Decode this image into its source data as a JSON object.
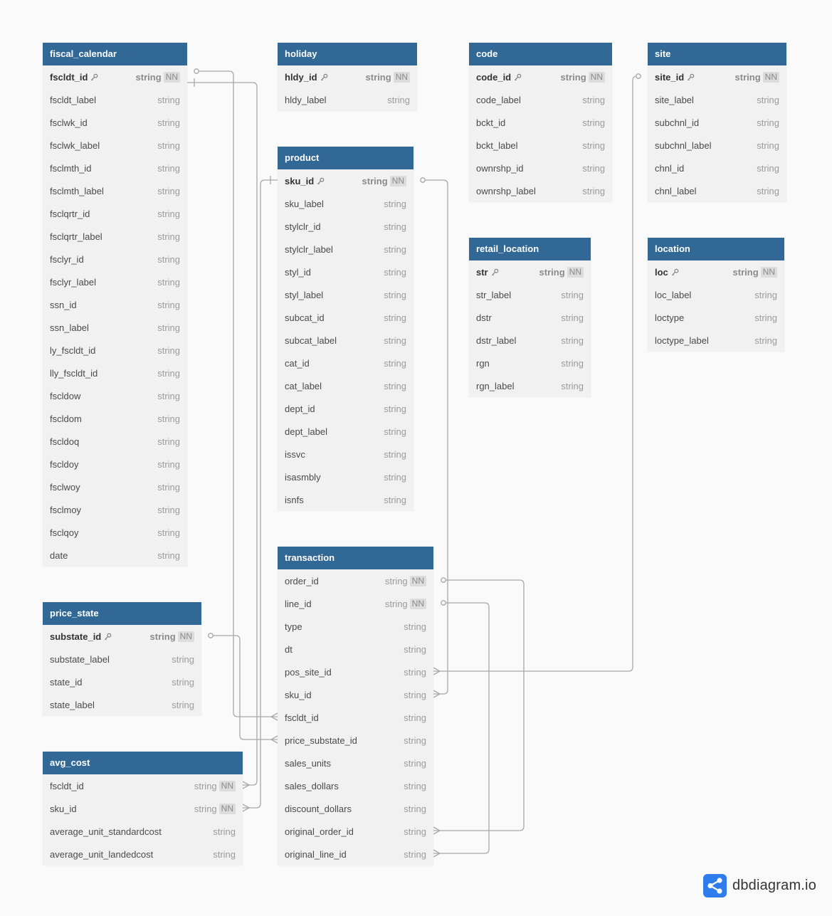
{
  "tables": [
    {
      "name": "fiscal_calendar",
      "columns": [
        {
          "name": "fscldt_id",
          "type": "string",
          "pk": true,
          "nn": "NN"
        },
        {
          "name": "fscldt_label",
          "type": "string"
        },
        {
          "name": "fsclwk_id",
          "type": "string"
        },
        {
          "name": "fsclwk_label",
          "type": "string"
        },
        {
          "name": "fsclmth_id",
          "type": "string"
        },
        {
          "name": "fsclmth_label",
          "type": "string"
        },
        {
          "name": "fsclqrtr_id",
          "type": "string"
        },
        {
          "name": "fsclqrtr_label",
          "type": "string"
        },
        {
          "name": "fsclyr_id",
          "type": "string"
        },
        {
          "name": "fsclyr_label",
          "type": "string"
        },
        {
          "name": "ssn_id",
          "type": "string"
        },
        {
          "name": "ssn_label",
          "type": "string"
        },
        {
          "name": "ly_fscldt_id",
          "type": "string"
        },
        {
          "name": "lly_fscldt_id",
          "type": "string"
        },
        {
          "name": "fscldow",
          "type": "string"
        },
        {
          "name": "fscldom",
          "type": "string"
        },
        {
          "name": "fscldoq",
          "type": "string"
        },
        {
          "name": "fscldoy",
          "type": "string"
        },
        {
          "name": "fsclwoy",
          "type": "string"
        },
        {
          "name": "fsclmoy",
          "type": "string"
        },
        {
          "name": "fsclqoy",
          "type": "string"
        },
        {
          "name": "date",
          "type": "string"
        }
      ]
    },
    {
      "name": "holiday",
      "columns": [
        {
          "name": "hldy_id",
          "type": "string",
          "pk": true,
          "nn": "NN"
        },
        {
          "name": "hldy_label",
          "type": "string"
        }
      ]
    },
    {
      "name": "product",
      "columns": [
        {
          "name": "sku_id",
          "type": "string",
          "pk": true,
          "nn": "NN"
        },
        {
          "name": "sku_label",
          "type": "string"
        },
        {
          "name": "stylclr_id",
          "type": "string"
        },
        {
          "name": "stylclr_label",
          "type": "string"
        },
        {
          "name": "styl_id",
          "type": "string"
        },
        {
          "name": "styl_label",
          "type": "string"
        },
        {
          "name": "subcat_id",
          "type": "string"
        },
        {
          "name": "subcat_label",
          "type": "string"
        },
        {
          "name": "cat_id",
          "type": "string"
        },
        {
          "name": "cat_label",
          "type": "string"
        },
        {
          "name": "dept_id",
          "type": "string"
        },
        {
          "name": "dept_label",
          "type": "string"
        },
        {
          "name": "issvc",
          "type": "string"
        },
        {
          "name": "isasmbly",
          "type": "string"
        },
        {
          "name": "isnfs",
          "type": "string"
        }
      ]
    },
    {
      "name": "code",
      "columns": [
        {
          "name": "code_id",
          "type": "string",
          "pk": true,
          "nn": "NN"
        },
        {
          "name": "code_label",
          "type": "string"
        },
        {
          "name": "bckt_id",
          "type": "string"
        },
        {
          "name": "bckt_label",
          "type": "string"
        },
        {
          "name": "ownrshp_id",
          "type": "string"
        },
        {
          "name": "ownrshp_label",
          "type": "string"
        }
      ]
    },
    {
      "name": "site",
      "columns": [
        {
          "name": "site_id",
          "type": "string",
          "pk": true,
          "nn": "NN"
        },
        {
          "name": "site_label",
          "type": "string"
        },
        {
          "name": "subchnl_id",
          "type": "string"
        },
        {
          "name": "subchnl_label",
          "type": "string"
        },
        {
          "name": "chnl_id",
          "type": "string"
        },
        {
          "name": "chnl_label",
          "type": "string"
        }
      ]
    },
    {
      "name": "retail_location",
      "columns": [
        {
          "name": "str",
          "type": "string",
          "pk": true,
          "nn": "NN"
        },
        {
          "name": "str_label",
          "type": "string"
        },
        {
          "name": "dstr",
          "type": "string"
        },
        {
          "name": "dstr_label",
          "type": "string"
        },
        {
          "name": "rgn",
          "type": "string"
        },
        {
          "name": "rgn_label",
          "type": "string"
        }
      ]
    },
    {
      "name": "location",
      "columns": [
        {
          "name": "loc",
          "type": "string",
          "pk": true,
          "nn": "NN"
        },
        {
          "name": "loc_label",
          "type": "string"
        },
        {
          "name": "loctype",
          "type": "string"
        },
        {
          "name": "loctype_label",
          "type": "string"
        }
      ]
    },
    {
      "name": "price_state",
      "columns": [
        {
          "name": "substate_id",
          "type": "string",
          "pk": true,
          "nn": "NN"
        },
        {
          "name": "substate_label",
          "type": "string"
        },
        {
          "name": "state_id",
          "type": "string"
        },
        {
          "name": "state_label",
          "type": "string"
        }
      ]
    },
    {
      "name": "avg_cost",
      "columns": [
        {
          "name": "fscldt_id",
          "type": "string",
          "nn": "NN"
        },
        {
          "name": "sku_id",
          "type": "string",
          "nn": "NN"
        },
        {
          "name": "average_unit_standardcost",
          "type": "string"
        },
        {
          "name": "average_unit_landedcost",
          "type": "string"
        }
      ]
    },
    {
      "name": "transaction",
      "columns": [
        {
          "name": "order_id",
          "type": "string",
          "nn": "NN"
        },
        {
          "name": "line_id",
          "type": "string",
          "nn": "NN"
        },
        {
          "name": "type",
          "type": "string"
        },
        {
          "name": "dt",
          "type": "string"
        },
        {
          "name": "pos_site_id",
          "type": "string"
        },
        {
          "name": "sku_id",
          "type": "string"
        },
        {
          "name": "fscldt_id",
          "type": "string"
        },
        {
          "name": "price_substate_id",
          "type": "string"
        },
        {
          "name": "sales_units",
          "type": "string"
        },
        {
          "name": "sales_dollars",
          "type": "string"
        },
        {
          "name": "discount_dollars",
          "type": "string"
        },
        {
          "name": "original_order_id",
          "type": "string"
        },
        {
          "name": "original_line_id",
          "type": "string"
        }
      ]
    }
  ],
  "relationships": [
    {
      "from": "fiscal_calendar.fscldt_id",
      "to": "transaction.fscldt_id",
      "kind": "one-to-many"
    },
    {
      "from": "fiscal_calendar.fscldt_id",
      "to": "avg_cost.fscldt_id",
      "kind": "one-to-many"
    },
    {
      "from": "product.sku_id",
      "to": "transaction.sku_id",
      "kind": "one-to-many"
    },
    {
      "from": "product.sku_id",
      "to": "avg_cost.sku_id",
      "kind": "one-to-many"
    },
    {
      "from": "site.site_id",
      "to": "transaction.pos_site_id",
      "kind": "one-to-many"
    },
    {
      "from": "price_state.substate_id",
      "to": "transaction.price_substate_id",
      "kind": "one-to-many"
    },
    {
      "from": "transaction.order_id",
      "to": "transaction.original_order_id",
      "kind": "one-to-many"
    },
    {
      "from": "transaction.line_id",
      "to": "transaction.original_line_id",
      "kind": "one-to-many"
    }
  ],
  "brand": {
    "text": "dbdiagram.io",
    "icon": "share-nodes-icon",
    "color": "#2f7ded"
  },
  "colors": {
    "header": "#316896",
    "header_text": "#ffffff",
    "body": "#f1f1f1",
    "line": "#a8a8a8"
  }
}
